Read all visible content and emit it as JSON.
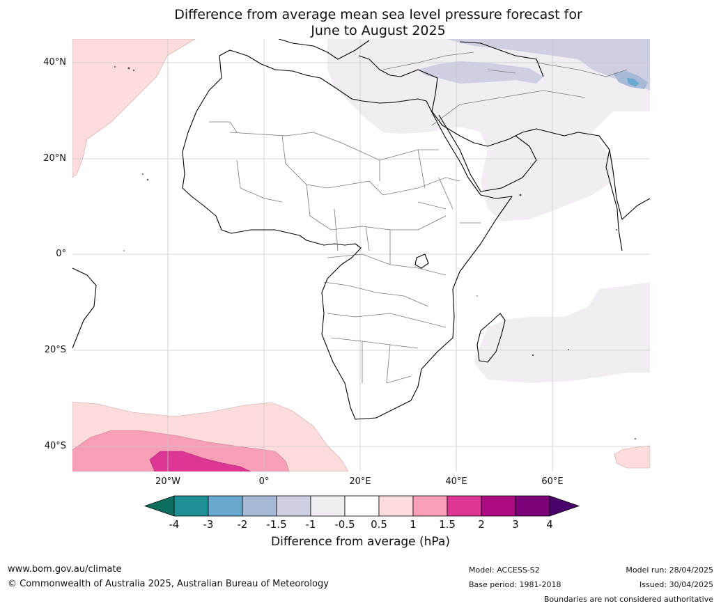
{
  "title_line1": "Difference from average mean sea level pressure forecast for",
  "title_line2": "June to August 2025",
  "lat_labels": [
    "40°N",
    "20°N",
    "0°",
    "20°S",
    "40°S"
  ],
  "lon_labels": [
    "20°W",
    "0°",
    "20°E",
    "40°E",
    "60°E"
  ],
  "colorbar": {
    "ticks": [
      "-4",
      "-3",
      "-2",
      "-1.5",
      "-1",
      "-0.5",
      "0.5",
      "1",
      "1.5",
      "2",
      "3",
      "4"
    ],
    "colors": [
      "#0d6e5f",
      "#1f8f96",
      "#68a8ce",
      "#a6b9d6",
      "#cfcfe3",
      "#f1edf3",
      "#ffffff",
      "#fddcdc",
      "#f89fb8",
      "#dd3795",
      "#ad0b80",
      "#7a0177",
      "#49006a"
    ],
    "label": "Difference from average (hPa)"
  },
  "footer": {
    "url": "www.bom.gov.au/climate",
    "copyright": "© Commonwealth of Australia 2025, Australian Bureau of Meteorology",
    "model": "Model: ACCESS-S2",
    "base_period": "Base period: 1981-2018",
    "model_run": "Model run: 28/04/2025",
    "issued": "Issued: 30/04/2025",
    "disclaimer": "Boundaries are not considered authoritative"
  }
}
